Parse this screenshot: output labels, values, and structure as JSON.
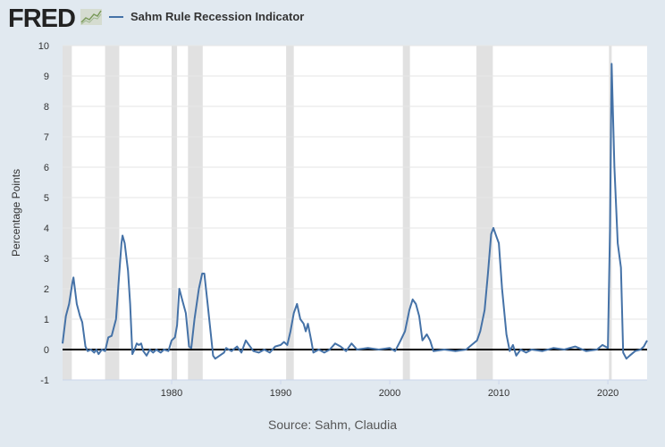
{
  "logo": "FRED",
  "chart_data": {
    "type": "line",
    "title": "Sahm Rule Recession Indicator",
    "ylabel": "Percentage Points",
    "xlabel": "",
    "source": "Source: Sahm, Claudia",
    "xlim": [
      1970,
      2023.6
    ],
    "ylim": [
      -1,
      10
    ],
    "yticks": [
      -1,
      0,
      1,
      2,
      3,
      4,
      5,
      6,
      7,
      8,
      9,
      10
    ],
    "xticks": [
      1980,
      1990,
      2000,
      2010,
      2020
    ],
    "grid": true,
    "colors": {
      "line": "#4572a7",
      "recession": "#e1e1e1",
      "background": "#e1e9f0"
    },
    "recessions": [
      [
        1969.9,
        1970.85
      ],
      [
        1973.9,
        1975.2
      ],
      [
        1980.0,
        1980.5
      ],
      [
        1981.5,
        1982.85
      ],
      [
        1990.5,
        1991.2
      ],
      [
        2001.2,
        2001.85
      ],
      [
        2007.95,
        2009.45
      ],
      [
        2020.1,
        2020.35
      ]
    ],
    "series": [
      {
        "name": "Sahm Rule Recession Indicator",
        "points": [
          [
            1970.0,
            0.2
          ],
          [
            1970.3,
            1.1
          ],
          [
            1970.6,
            1.5
          ],
          [
            1970.9,
            2.2
          ],
          [
            1971.0,
            2.37
          ],
          [
            1971.3,
            1.5
          ],
          [
            1971.6,
            1.1
          ],
          [
            1971.8,
            0.9
          ],
          [
            1972.1,
            0.1
          ],
          [
            1972.3,
            -0.05
          ],
          [
            1972.6,
            0.0
          ],
          [
            1972.9,
            -0.1
          ],
          [
            1973.1,
            0.0
          ],
          [
            1973.3,
            -0.15
          ],
          [
            1973.6,
            0.0
          ],
          [
            1973.9,
            -0.05
          ],
          [
            1974.2,
            0.4
          ],
          [
            1974.5,
            0.45
          ],
          [
            1974.9,
            1.0
          ],
          [
            1975.2,
            2.5
          ],
          [
            1975.4,
            3.5
          ],
          [
            1975.5,
            3.75
          ],
          [
            1975.7,
            3.5
          ],
          [
            1976.0,
            2.6
          ],
          [
            1976.2,
            1.5
          ],
          [
            1976.4,
            -0.15
          ],
          [
            1976.6,
            0.0
          ],
          [
            1976.8,
            0.2
          ],
          [
            1977.0,
            0.15
          ],
          [
            1977.2,
            0.2
          ],
          [
            1977.4,
            -0.05
          ],
          [
            1977.7,
            -0.2
          ],
          [
            1978.0,
            0.0
          ],
          [
            1978.3,
            -0.1
          ],
          [
            1978.6,
            0.0
          ],
          [
            1979.0,
            -0.1
          ],
          [
            1979.3,
            0.0
          ],
          [
            1979.7,
            -0.05
          ],
          [
            1980.0,
            0.3
          ],
          [
            1980.3,
            0.4
          ],
          [
            1980.5,
            0.8
          ],
          [
            1980.7,
            2.0
          ],
          [
            1981.0,
            1.6
          ],
          [
            1981.3,
            1.2
          ],
          [
            1981.6,
            0.1
          ],
          [
            1981.8,
            0.05
          ],
          [
            1982.1,
            1.0
          ],
          [
            1982.5,
            2.0
          ],
          [
            1982.8,
            2.5
          ],
          [
            1983.0,
            2.5
          ],
          [
            1983.3,
            1.5
          ],
          [
            1983.6,
            0.5
          ],
          [
            1983.8,
            -0.2
          ],
          [
            1984.0,
            -0.3
          ],
          [
            1984.4,
            -0.2
          ],
          [
            1984.8,
            -0.1
          ],
          [
            1985.0,
            0.05
          ],
          [
            1985.5,
            -0.05
          ],
          [
            1986.0,
            0.1
          ],
          [
            1986.4,
            -0.1
          ],
          [
            1986.8,
            0.3
          ],
          [
            1987.1,
            0.15
          ],
          [
            1987.5,
            -0.05
          ],
          [
            1988.0,
            -0.1
          ],
          [
            1988.5,
            0.0
          ],
          [
            1989.0,
            -0.1
          ],
          [
            1989.5,
            0.1
          ],
          [
            1990.0,
            0.15
          ],
          [
            1990.3,
            0.25
          ],
          [
            1990.6,
            0.15
          ],
          [
            1990.9,
            0.6
          ],
          [
            1991.2,
            1.2
          ],
          [
            1991.5,
            1.5
          ],
          [
            1991.8,
            1.0
          ],
          [
            1992.1,
            0.85
          ],
          [
            1992.3,
            0.6
          ],
          [
            1992.5,
            0.85
          ],
          [
            1992.8,
            0.3
          ],
          [
            1993.0,
            -0.1
          ],
          [
            1993.5,
            0.0
          ],
          [
            1994.0,
            -0.1
          ],
          [
            1994.5,
            0.0
          ],
          [
            1995.0,
            0.2
          ],
          [
            1995.5,
            0.1
          ],
          [
            1996.0,
            -0.05
          ],
          [
            1996.5,
            0.2
          ],
          [
            1997.0,
            0.0
          ],
          [
            1998.0,
            0.05
          ],
          [
            1999.0,
            0.0
          ],
          [
            2000.0,
            0.05
          ],
          [
            2000.5,
            -0.05
          ],
          [
            2001.0,
            0.3
          ],
          [
            2001.4,
            0.6
          ],
          [
            2001.8,
            1.3
          ],
          [
            2002.1,
            1.65
          ],
          [
            2002.4,
            1.5
          ],
          [
            2002.7,
            1.1
          ],
          [
            2003.0,
            0.3
          ],
          [
            2003.4,
            0.5
          ],
          [
            2003.7,
            0.3
          ],
          [
            2004.0,
            -0.05
          ],
          [
            2005.0,
            0.0
          ],
          [
            2006.0,
            -0.05
          ],
          [
            2007.0,
            0.0
          ],
          [
            2007.5,
            0.15
          ],
          [
            2008.0,
            0.3
          ],
          [
            2008.3,
            0.6
          ],
          [
            2008.7,
            1.3
          ],
          [
            2009.0,
            2.5
          ],
          [
            2009.3,
            3.8
          ],
          [
            2009.5,
            4.0
          ],
          [
            2009.8,
            3.7
          ],
          [
            2010.0,
            3.5
          ],
          [
            2010.3,
            2.0
          ],
          [
            2010.7,
            0.5
          ],
          [
            2011.0,
            -0.05
          ],
          [
            2011.3,
            0.15
          ],
          [
            2011.6,
            -0.2
          ],
          [
            2012.0,
            0.0
          ],
          [
            2012.5,
            -0.1
          ],
          [
            2013.0,
            0.0
          ],
          [
            2014.0,
            -0.05
          ],
          [
            2015.0,
            0.05
          ],
          [
            2016.0,
            0.0
          ],
          [
            2017.0,
            0.1
          ],
          [
            2018.0,
            -0.05
          ],
          [
            2019.0,
            0.0
          ],
          [
            2019.5,
            0.15
          ],
          [
            2020.0,
            0.05
          ],
          [
            2020.2,
            4.0
          ],
          [
            2020.35,
            9.4
          ],
          [
            2020.6,
            6.0
          ],
          [
            2020.9,
            3.5
          ],
          [
            2021.2,
            2.7
          ],
          [
            2021.4,
            -0.1
          ],
          [
            2021.7,
            -0.3
          ],
          [
            2022.0,
            -0.2
          ],
          [
            2022.5,
            -0.05
          ],
          [
            2023.0,
            0.0
          ],
          [
            2023.3,
            0.1
          ],
          [
            2023.6,
            0.3
          ]
        ]
      }
    ]
  }
}
